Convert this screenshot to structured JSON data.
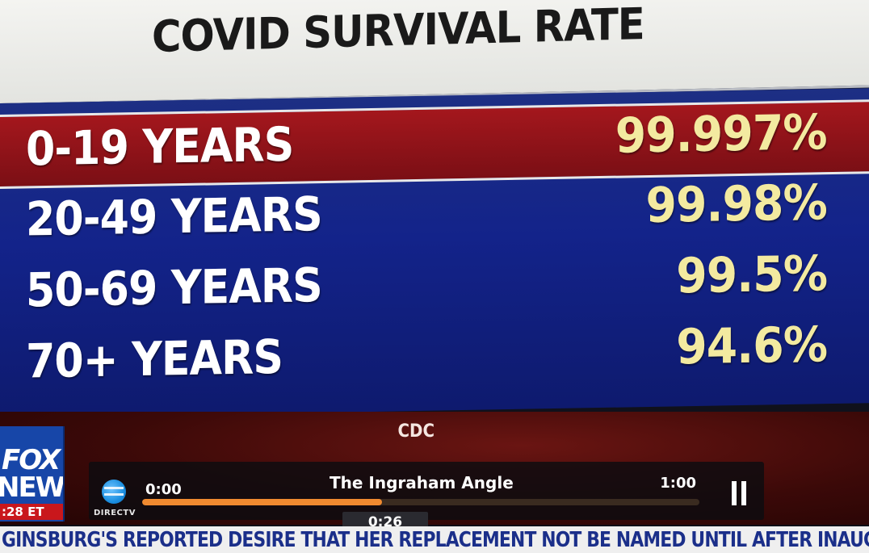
{
  "graphic": {
    "title": "COVID SURVIVAL RATE",
    "rows": [
      {
        "label": "0-19 YEARS",
        "value": "99.997%"
      },
      {
        "label": "20-49 YEARS",
        "value": "99.98%"
      },
      {
        "label": "50-69 YEARS",
        "value": "99.5%"
      },
      {
        "label": "70+ YEARS",
        "value": "94.6%"
      }
    ],
    "source": "CDC"
  },
  "network": {
    "logo_top": "FOX",
    "logo_bottom": "NEWS",
    "time_tag": ":28 ET"
  },
  "player": {
    "provider_label": "DIRECTV",
    "show_title": "The Ingraham Angle",
    "time_start": "0:00",
    "time_end": "1:00",
    "current_time": "0:26",
    "progress_fraction": 0.43,
    "pause_icon": "pause-icon",
    "provider_icon": "att-globe-icon"
  },
  "ticker": {
    "text": "GINSBURG'S REPORTED DESIRE THAT HER REPLACEMENT NOT BE NAMED UNTIL AFTER INAUGURATION"
  },
  "colors": {
    "highlight_row": "#a4171d",
    "panel_blue": "#13238a",
    "value_yellow": "#f3eaa0",
    "progress_orange": "#f08a30"
  }
}
